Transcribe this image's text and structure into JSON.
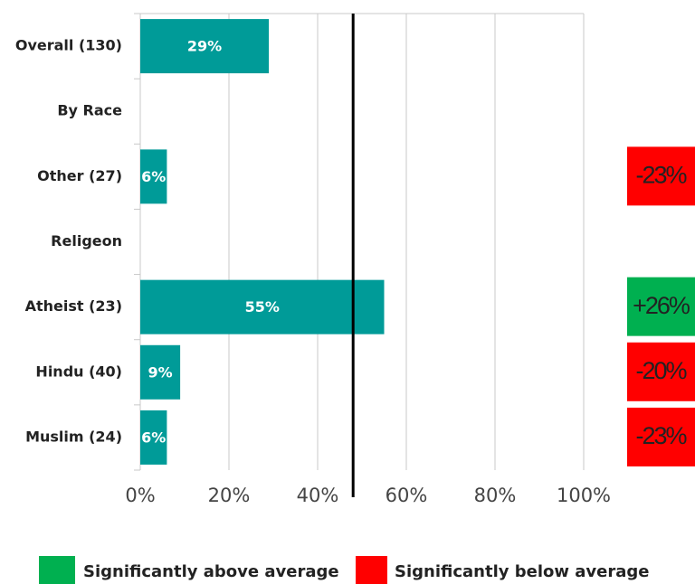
{
  "chart_data": {
    "type": "bar",
    "orientation": "horizontal",
    "categories": [
      "Overall (130)",
      "By Race",
      "Other (27)",
      "Religeon",
      "Atheist (23)",
      "Hindu (40)",
      "Muslim (24)"
    ],
    "values": [
      29,
      null,
      6,
      null,
      55,
      9,
      6
    ],
    "value_labels": [
      "29%",
      null,
      "6%",
      null,
      "55%",
      "9%",
      "6%"
    ],
    "color": "#009b98",
    "xlim": [
      0,
      100
    ],
    "xticks": [
      {
        "value": 0,
        "label": "0%"
      },
      {
        "value": 20,
        "label": "20%"
      },
      {
        "value": 40,
        "label": "40%"
      },
      {
        "value": 60,
        "label": "60%"
      },
      {
        "value": 80,
        "label": "80%"
      },
      {
        "value": 100,
        "label": "100%"
      }
    ],
    "grid": true,
    "reference_line": 48,
    "differences": [
      null,
      null,
      -23,
      null,
      26,
      -20,
      -23
    ],
    "difference_labels": [
      null,
      null,
      "-23%",
      null,
      "+26%",
      "-20%",
      "-23%"
    ],
    "legend": [
      {
        "label": "Significantly above average",
        "color": "#00b050"
      },
      {
        "label": "Significantly below average",
        "color": "#ff0000"
      }
    ]
  }
}
